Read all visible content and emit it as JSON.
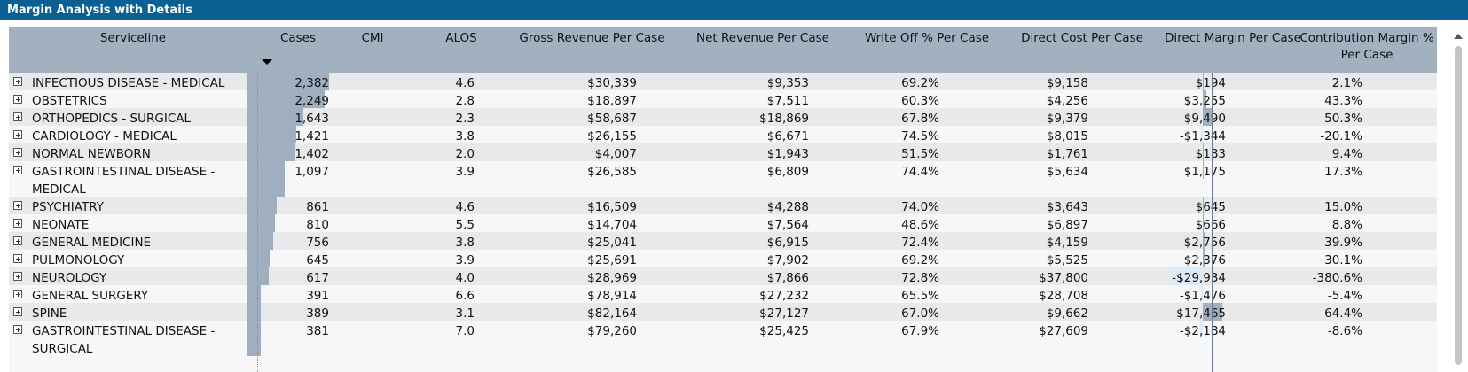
{
  "title": "Margin Analysis with Details",
  "columns": {
    "serviceline": "Serviceline",
    "cases": "Cases",
    "cmi": "CMI",
    "alos": "ALOS",
    "gross": "Gross Revenue Per Case",
    "net": "Net Revenue Per Case",
    "writeoff": "Write Off % Per Case",
    "direct_cost": "Direct Cost Per Case",
    "direct_margin": "Direct Margin Per Case",
    "contribution_l1": "Contribution Margin %",
    "contribution_l2": "Per Case"
  },
  "accent_colors": {
    "titlebar": "#0a6093",
    "header": "#a2b1c0",
    "bar": "#9fafbf",
    "negative_bar": "#dcebf7"
  },
  "rows": [
    {
      "name": "INFECTIOUS DISEASE - MEDICAL",
      "cases": "2,382",
      "cases_value": 2382,
      "cmi": "",
      "alos": "4.6",
      "gross": "$30,339",
      "net": "$9,353",
      "writeoff": "69.2%",
      "direct_cost": "$9,158",
      "direct_margin": "$194",
      "dm_value": 194,
      "contribution": "2.1%"
    },
    {
      "name": "OBSTETRICS",
      "cases": "2,249",
      "cases_value": 2249,
      "cmi": "",
      "alos": "2.8",
      "gross": "$18,897",
      "net": "$7,511",
      "writeoff": "60.3%",
      "direct_cost": "$4,256",
      "direct_margin": "$3,255",
      "dm_value": 3255,
      "contribution": "43.3%"
    },
    {
      "name": "ORTHOPEDICS - SURGICAL",
      "cases": "1,643",
      "cases_value": 1643,
      "cmi": "",
      "alos": "2.3",
      "gross": "$58,687",
      "net": "$18,869",
      "writeoff": "67.8%",
      "direct_cost": "$9,379",
      "direct_margin": "$9,490",
      "dm_value": 9490,
      "contribution": "50.3%"
    },
    {
      "name": "CARDIOLOGY - MEDICAL",
      "cases": "1,421",
      "cases_value": 1421,
      "cmi": "",
      "alos": "3.8",
      "gross": "$26,155",
      "net": "$6,671",
      "writeoff": "74.5%",
      "direct_cost": "$8,015",
      "direct_margin": "-$1,344",
      "dm_value": -1344,
      "contribution": "-20.1%"
    },
    {
      "name": "NORMAL NEWBORN",
      "cases": "1,402",
      "cases_value": 1402,
      "cmi": "",
      "alos": "2.0",
      "gross": "$4,007",
      "net": "$1,943",
      "writeoff": "51.5%",
      "direct_cost": "$1,761",
      "direct_margin": "$183",
      "dm_value": 183,
      "contribution": "9.4%"
    },
    {
      "name": "GASTROINTESTINAL DISEASE - MEDICAL",
      "cases": "1,097",
      "cases_value": 1097,
      "cmi": "",
      "alos": "3.9",
      "gross": "$26,585",
      "net": "$6,809",
      "writeoff": "74.4%",
      "direct_cost": "$5,634",
      "direct_margin": "$1,175",
      "dm_value": 1175,
      "contribution": "17.3%"
    },
    {
      "name": "PSYCHIATRY",
      "cases": "861",
      "cases_value": 861,
      "cmi": "",
      "alos": "4.6",
      "gross": "$16,509",
      "net": "$4,288",
      "writeoff": "74.0%",
      "direct_cost": "$3,643",
      "direct_margin": "$645",
      "dm_value": 645,
      "contribution": "15.0%"
    },
    {
      "name": "NEONATE",
      "cases": "810",
      "cases_value": 810,
      "cmi": "",
      "alos": "5.5",
      "gross": "$14,704",
      "net": "$7,564",
      "writeoff": "48.6%",
      "direct_cost": "$6,897",
      "direct_margin": "$666",
      "dm_value": 666,
      "contribution": "8.8%"
    },
    {
      "name": "GENERAL MEDICINE",
      "cases": "756",
      "cases_value": 756,
      "cmi": "",
      "alos": "3.8",
      "gross": "$25,041",
      "net": "$6,915",
      "writeoff": "72.4%",
      "direct_cost": "$4,159",
      "direct_margin": "$2,756",
      "dm_value": 2756,
      "contribution": "39.9%"
    },
    {
      "name": "PULMONOLOGY",
      "cases": "645",
      "cases_value": 645,
      "cmi": "",
      "alos": "3.9",
      "gross": "$25,691",
      "net": "$7,902",
      "writeoff": "69.2%",
      "direct_cost": "$5,525",
      "direct_margin": "$2,376",
      "dm_value": 2376,
      "contribution": "30.1%"
    },
    {
      "name": "NEUROLOGY",
      "cases": "617",
      "cases_value": 617,
      "cmi": "",
      "alos": "4.0",
      "gross": "$28,969",
      "net": "$7,866",
      "writeoff": "72.8%",
      "direct_cost": "$37,800",
      "direct_margin": "-$29,934",
      "dm_value": -29934,
      "contribution": "-380.6%"
    },
    {
      "name": "GENERAL SURGERY",
      "cases": "391",
      "cases_value": 391,
      "cmi": "",
      "alos": "6.6",
      "gross": "$78,914",
      "net": "$27,232",
      "writeoff": "65.5%",
      "direct_cost": "$28,708",
      "direct_margin": "-$1,476",
      "dm_value": -1476,
      "contribution": "-5.4%"
    },
    {
      "name": "SPINE",
      "cases": "389",
      "cases_value": 389,
      "cmi": "",
      "alos": "3.1",
      "gross": "$82,164",
      "net": "$27,127",
      "writeoff": "67.0%",
      "direct_cost": "$9,662",
      "direct_margin": "$17,465",
      "dm_value": 17465,
      "contribution": "64.4%"
    },
    {
      "name": "GASTROINTESTINAL DISEASE - SURGICAL",
      "cases": "381",
      "cases_value": 381,
      "cmi": "",
      "alos": "7.0",
      "gross": "$79,260",
      "net": "$25,425",
      "writeoff": "67.9%",
      "direct_cost": "$27,609",
      "direct_margin": "-$2,184",
      "dm_value": -2184,
      "contribution": "-8.6%"
    }
  ]
}
